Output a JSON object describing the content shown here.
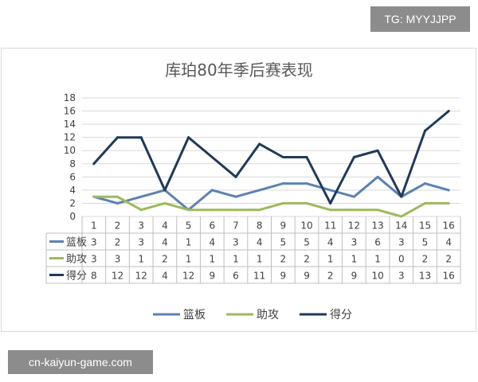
{
  "watermarks": {
    "top": "TG: MYYJJPP",
    "bottom": "cn-kaiyun-game.com"
  },
  "chart_data": {
    "type": "line",
    "title": "库珀80年季后赛表现",
    "xlabel": "",
    "ylabel": "",
    "categories": [
      "1",
      "2",
      "3",
      "4",
      "5",
      "6",
      "7",
      "8",
      "9",
      "10",
      "11",
      "12",
      "13",
      "14",
      "15",
      "16"
    ],
    "ylim": [
      0,
      18
    ],
    "yticks": [
      0,
      2,
      4,
      6,
      8,
      10,
      12,
      14,
      16,
      18
    ],
    "grid": true,
    "legend": "bottom",
    "series": [
      {
        "name": "篮板",
        "color": "#5b82b4",
        "values": [
          3,
          2,
          3,
          4,
          1,
          4,
          3,
          4,
          5,
          5,
          4,
          3,
          6,
          3,
          5,
          4
        ]
      },
      {
        "name": "助攻",
        "color": "#9bbb59",
        "values": [
          3,
          3,
          1,
          2,
          1,
          1,
          1,
          1,
          2,
          2,
          1,
          1,
          1,
          0,
          2,
          2
        ]
      },
      {
        "name": "得分",
        "color": "#1f3a5a",
        "values": [
          8,
          12,
          12,
          4,
          12,
          9,
          6,
          11,
          9,
          9,
          2,
          9,
          10,
          3,
          13,
          16
        ]
      }
    ]
  }
}
